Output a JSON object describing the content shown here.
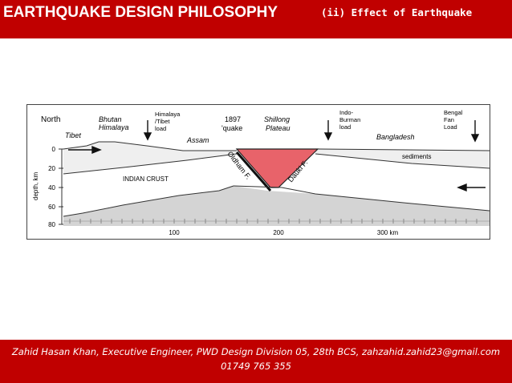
{
  "header": {
    "title": "EARTHQUAKE DESIGN PHILOSOPHY",
    "subtitle": "(ii) Effect of Earthquake"
  },
  "diagram": {
    "labels": {
      "north": "North",
      "tibet": "Tibet",
      "bhutan": "Bhutan",
      "himalaya": "Himalaya",
      "himalaya_tibet_load_1": "Himalaya",
      "himalaya_tibet_load_2": "/Tibet",
      "himalaya_tibet_load_3": "load",
      "assam": "Assam",
      "quake_year": "1897",
      "quake_word": "'quake",
      "shillong_1": "Shillong",
      "shillong_2": "Plateau",
      "indo_1": "Indo-",
      "indo_2": "Burman",
      "indo_3": "load",
      "bangladesh": "Bangladesh",
      "bengal_1": "Bengal",
      "bengal_2": "Fan",
      "bengal_3": "Load",
      "sediments": "sediments",
      "indian_crust": "INDIAN CRUST",
      "oldham_fault": "Oldham F.",
      "dauki_fault": "Dauki F.",
      "depth_axis": "depth, km"
    },
    "depth_ticks": [
      "0",
      "20",
      "40",
      "60",
      "80"
    ],
    "distance_ticks": [
      "100",
      "200",
      "300 km"
    ],
    "colors": {
      "plateau": "#e8636a",
      "upper_layer": "#efefef",
      "mantle": "#d4d4d4",
      "frame": "#444444"
    }
  },
  "footer": {
    "line1": "Zahid Hasan Khan, Executive Engineer, PWD Design Division 05, 28th BCS, zahzahid.zahid23@gmail.com",
    "line2": "01749 765 355"
  }
}
